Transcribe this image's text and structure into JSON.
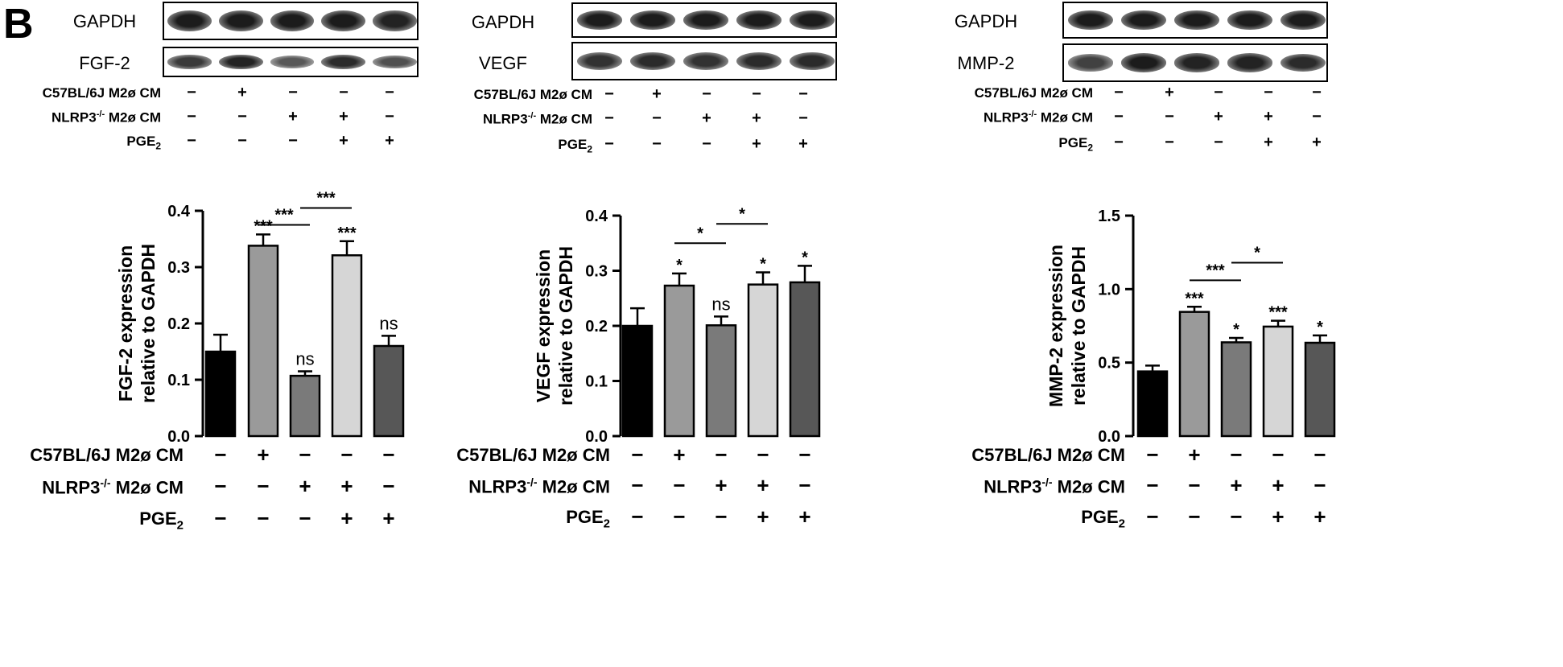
{
  "panel_letter": "B",
  "row_labels": {
    "c57": "C57BL/6J M2ø CM",
    "nlrp3_prefix": "NLRP3",
    "nlrp3_sup": "-/-",
    "nlrp3_suffix": " M2ø CM",
    "pge_prefix": "PGE",
    "pge_sub": "2"
  },
  "conditions": {
    "c57": [
      "−",
      "+",
      "−",
      "−",
      "−"
    ],
    "nlrp3": [
      "−",
      "−",
      "+",
      "+",
      "−"
    ],
    "pge2": [
      "−",
      "−",
      "−",
      "+",
      "+"
    ]
  },
  "panels": [
    {
      "blot_top_label": "GAPDH",
      "blot_bottom_label": "FGF-2",
      "top_band_intensity": [
        0.95,
        0.95,
        0.95,
        0.95,
        0.9
      ],
      "bottom_band_intensity": [
        0.75,
        0.9,
        0.55,
        0.85,
        0.6
      ]
    },
    {
      "blot_top_label": "GAPDH",
      "blot_bottom_label": "VEGF",
      "top_band_intensity": [
        0.95,
        0.95,
        0.95,
        0.95,
        0.95
      ],
      "bottom_band_intensity": [
        0.8,
        0.85,
        0.8,
        0.85,
        0.85
      ]
    },
    {
      "blot_top_label": "GAPDH",
      "blot_bottom_label": "MMP-2",
      "top_band_intensity": [
        0.95,
        0.95,
        0.95,
        0.95,
        0.95
      ],
      "bottom_band_intensity": [
        0.7,
        0.95,
        0.9,
        0.9,
        0.85
      ]
    }
  ],
  "chart_data": [
    {
      "type": "bar",
      "ylabel_line1": "FGF-2  expression",
      "ylabel_line2": "relative to GAPDH",
      "ylim": [
        0,
        0.4
      ],
      "yticks": [
        "0.0",
        "0.1",
        "0.2",
        "0.3",
        "0.4"
      ],
      "yticks_values": [
        0,
        0.1,
        0.2,
        0.3,
        0.4
      ],
      "values": [
        0.15,
        0.338,
        0.107,
        0.321,
        0.16
      ],
      "errors": [
        0.03,
        0.02,
        0.008,
        0.025,
        0.018
      ],
      "colors": [
        "#000000",
        "#9a9a9a",
        "#7a7a7a",
        "#d6d6d6",
        "#575757"
      ],
      "bar_labels": [
        "",
        "***",
        "ns",
        "***",
        "ns"
      ],
      "comparisons": [
        {
          "from": 1,
          "to": 2,
          "label": "***",
          "y": 0.375
        },
        {
          "from": 2,
          "to": 3,
          "label": "***",
          "y": 0.405
        }
      ]
    },
    {
      "type": "bar",
      "ylabel_line1": "VEGF  expression",
      "ylabel_line2": "relative to GAPDH",
      "ylim": [
        0,
        0.4
      ],
      "yticks": [
        "0.0",
        "0.1",
        "0.2",
        "0.3",
        "0.4"
      ],
      "yticks_values": [
        0,
        0.1,
        0.2,
        0.3,
        0.4
      ],
      "values": [
        0.2,
        0.273,
        0.201,
        0.275,
        0.279
      ],
      "errors": [
        0.032,
        0.022,
        0.016,
        0.022,
        0.03
      ],
      "colors": [
        "#000000",
        "#9a9a9a",
        "#7a7a7a",
        "#d6d6d6",
        "#575757"
      ],
      "bar_labels": [
        "",
        "*",
        "ns",
        "*",
        "*"
      ],
      "comparisons": [
        {
          "from": 1,
          "to": 2,
          "label": "*",
          "y": 0.35
        },
        {
          "from": 2,
          "to": 3,
          "label": "*",
          "y": 0.385
        }
      ]
    },
    {
      "type": "bar",
      "ylabel_line1": "MMP-2 expression",
      "ylabel_line2": "relative to GAPDH",
      "ylim": [
        0,
        1.5
      ],
      "yticks": [
        "0.0",
        "0.5",
        "1.0",
        "1.5"
      ],
      "yticks_values": [
        0,
        0.5,
        1.0,
        1.5
      ],
      "values": [
        0.44,
        0.845,
        0.638,
        0.745,
        0.635
      ],
      "errors": [
        0.04,
        0.035,
        0.03,
        0.04,
        0.05
      ],
      "colors": [
        "#000000",
        "#9a9a9a",
        "#7a7a7a",
        "#d6d6d6",
        "#575757"
      ],
      "bar_labels": [
        "",
        "***",
        "*",
        "***",
        "*"
      ],
      "comparisons": [
        {
          "from": 1,
          "to": 2,
          "label": "***",
          "y": 1.06
        },
        {
          "from": 2,
          "to": 3,
          "label": "*",
          "y": 1.18
        }
      ]
    }
  ]
}
